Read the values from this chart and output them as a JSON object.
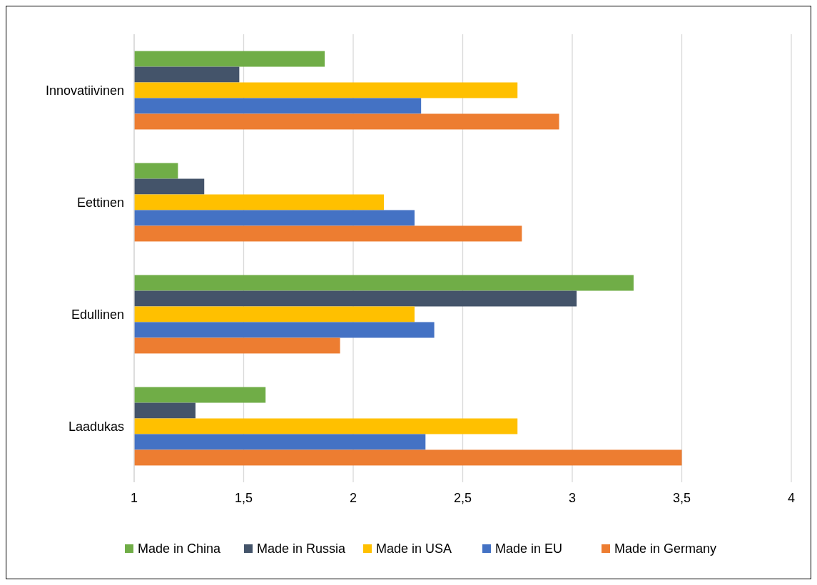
{
  "chart_data": {
    "type": "bar",
    "orientation": "horizontal",
    "categories": [
      "Innovatiivinen",
      "Eettinen",
      "Edullinen",
      "Laadukas"
    ],
    "series": [
      {
        "name": "Made in China",
        "color": "#70ad47",
        "values": [
          1.87,
          1.2,
          3.28,
          1.6
        ]
      },
      {
        "name": "Made in Russia",
        "color": "#44546a",
        "values": [
          1.48,
          1.32,
          3.02,
          1.28
        ]
      },
      {
        "name": "Made in USA",
        "color": "#ffc000",
        "values": [
          2.75,
          2.14,
          2.28,
          2.75
        ]
      },
      {
        "name": "Made in EU",
        "color": "#4472c4",
        "values": [
          2.31,
          2.28,
          2.37,
          2.33
        ]
      },
      {
        "name": "Made in Germany",
        "color": "#ed7d31",
        "values": [
          2.94,
          2.77,
          1.94,
          3.5
        ]
      }
    ],
    "xlim": [
      1,
      4
    ],
    "xticks": [
      1,
      {
        "value": 1.5,
        "label": "1,5"
      },
      2,
      {
        "value": 2.5,
        "label": "2,5"
      },
      3,
      {
        "value": 3.5,
        "label": "3,5"
      },
      4
    ],
    "grid": "x",
    "legend": "bottom"
  }
}
